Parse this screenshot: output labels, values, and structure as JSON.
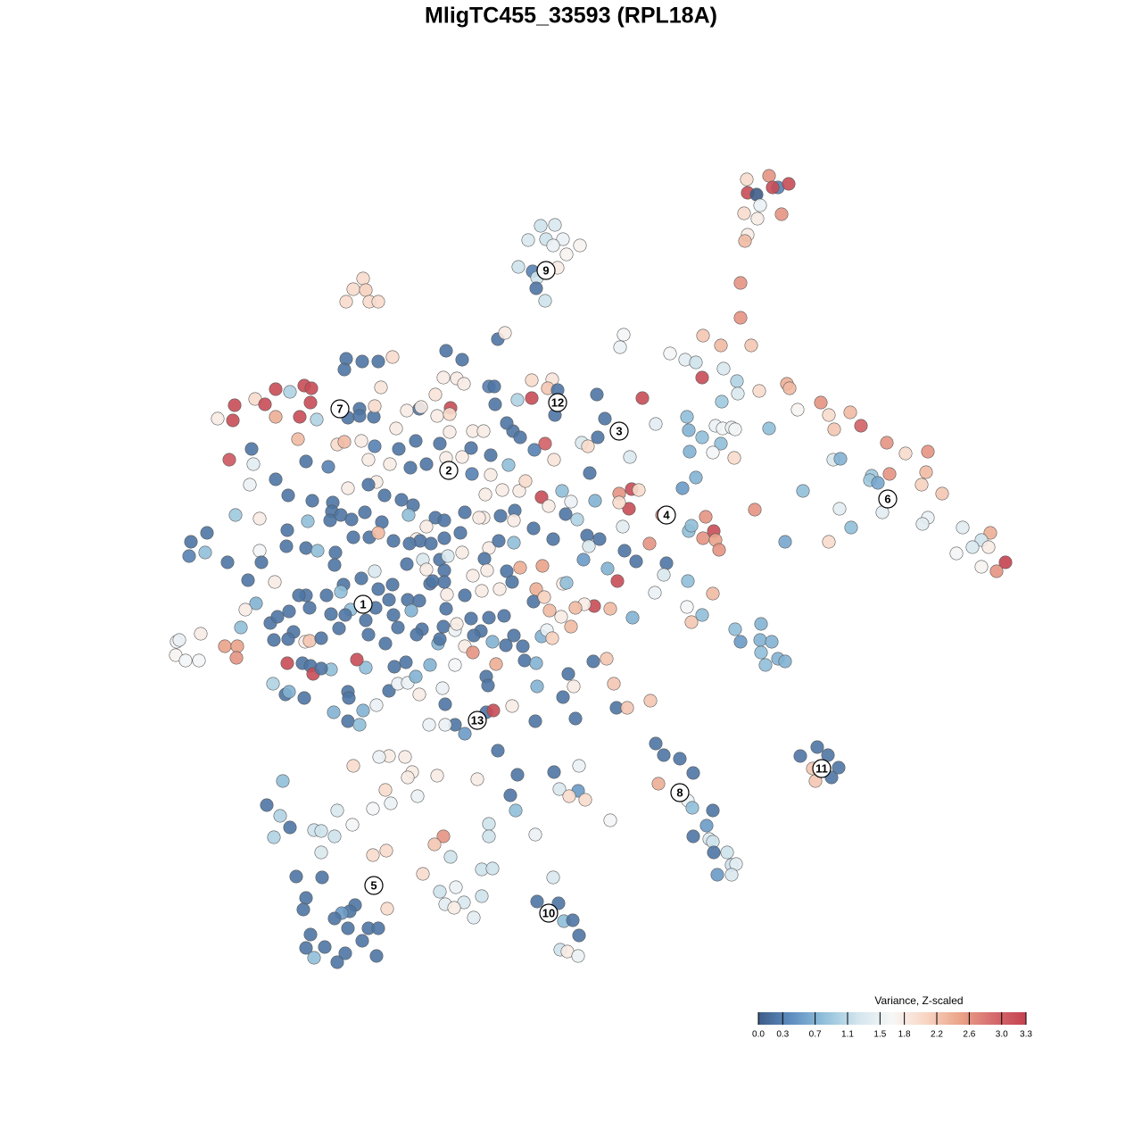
{
  "chart_data": {
    "type": "scatter",
    "title": "MligTC455_33593 (RPL18A)",
    "x": [
      837,
      862,
      872,
      884,
      866,
      838,
      848,
      852,
      834,
      849,
      876,
      838,
      835,
      830,
      830,
      808,
      842,
      788,
      751,
      768,
      780,
      787,
      811,
      826,
      827,
      851,
      882,
      885,
      894,
      920,
      929,
      953,
      935,
      965,
      770,
      772,
      802,
      810,
      820,
      824,
      787,
      808,
      773,
      799,
      823,
      862,
      809,
      735,
      780,
      765,
      994,
      1015,
      1040,
      1038,
      977,
      997,
      934,
      942,
      975,
      984,
      1033,
      1056,
      900,
      941,
      989,
      1040,
      1034,
      954,
      1079,
      1110,
      1100,
      1090,
      1108,
      1072,
      1100,
      1127,
      1117,
      929,
      880,
      846,
      606,
      622,
      592,
      612,
      631,
      620,
      650,
      635,
      581,
      597,
      625,
      602,
      601,
      611,
      407,
      396,
      410,
      388,
      414,
      424,
      558,
      566,
      699,
      695,
      388,
      406,
      424,
      440,
      386,
      500,
      518,
      497,
      512,
      427,
      488,
      548,
      554,
      580,
      596,
      619,
      614,
      625,
      669,
      720,
      596,
      555,
      622,
      678,
      670,
      661,
      706,
      652,
      659,
      621,
      599,
      611,
      575,
      568,
      583,
      520,
      244,
      263,
      261,
      286,
      297,
      309,
      325,
      341,
      349,
      348,
      336,
      309,
      355,
      334,
      257,
      282,
      284,
      280,
      309,
      343,
      368,
      390,
      403,
      403,
      419,
      420,
      378,
      386,
      405,
      413,
      420,
      444,
      456,
      470,
      472,
      490,
      505,
      504,
      504,
      530,
      542,
      447,
      466,
      493,
      437,
      460,
      478,
      500,
      518,
      528,
      550,
      570,
      529,
      550,
      544,
      563,
      582,
      589,
      607,
      630,
      640,
      667,
      634,
      615,
      577,
      598,
      576,
      561,
      542,
      521,
      488,
      463,
      450,
      431,
      422,
      413,
      390,
      373,
      350,
      323,
      264,
      291,
      345,
      372,
      370,
      382,
      394,
      409,
      428,
      458,
      478,
      498,
      516,
      537,
      548,
      559,
      576,
      620,
      647,
      658,
      660,
      672,
      698,
      700,
      713,
      728,
      742,
      747,
      694,
      708,
      716,
      705,
      694,
      772,
      775,
      791,
      800,
      788,
      802,
      806,
      232,
      214,
      212,
      230,
      255,
      291,
      293,
      278,
      308,
      321,
      322,
      343,
      356,
      376,
      375,
      396,
      414,
      424,
      441,
      467,
      471,
      459,
      483,
      498,
      518,
      543,
      546,
      568,
      583,
      608,
      631,
      635,
      654,
      681,
      692,
      666,
      684,
      655,
      645,
      640,
      629,
      616,
      601,
      598,
      610,
      574,
      560,
      540,
      521,
      528,
      501,
      482,
      456,
      440,
      436,
      424,
      405,
      385,
      382,
      366,
      343,
      335,
      347,
      371,
      393,
      421,
      420,
      441,
      457,
      470,
      485,
      493,
      502,
      474,
      478,
      498,
      498,
      530,
      548,
      539,
      552,
      576,
      567,
      586,
      607,
      613,
      619,
      565,
      531,
      521,
      500,
      497,
      473,
      467,
      461,
      491,
      493,
      510,
      512,
      287,
      275,
      303,
      311,
      324,
      329,
      270,
      307,
      323,
      342,
      347,
      360,
      380,
      387,
      410,
      413,
      432,
      446,
      410,
      400,
      198,
      201,
      225,
      252,
      266,
      265,
      197,
      208,
      223,
      322,
      339,
      348,
      351,
      371,
      360,
      306,
      320,
      324,
      341,
      390,
      391,
      374,
      390,
      403,
      407,
      422,
      436,
      446,
      455,
      457,
      466,
      442,
      482,
      510,
      530,
      545,
      547,
      556,
      588,
      601,
      637,
      643,
      602,
      631,
      645,
      600,
      574,
      545,
      553,
      496,
      470,
      499,
      510,
      521,
      499,
      481,
      665,
      680,
      688,
      691,
      703,
      729,
      558,
      436,
      425,
      396,
      454,
      462,
      490,
      535,
      457,
      432,
      438,
      418,
      468,
      317,
      299,
      314,
      325,
      307,
      352,
      360,
      375,
      378,
      395,
      360,
      497,
      487,
      548,
      548,
      600,
      505,
      474,
      540,
      552,
      511,
      493,
      499,
      520,
      540,
      509,
      531,
      434,
      433,
      418,
      332,
      361,
      343,
      340,
      398,
      392,
      383,
      375,
      390,
      413,
      424,
      406,
      348,
      343,
      352,
      364,
      387,
      378,
      422,
      572,
      578,
      580,
      621,
      627,
      649,
      648,
      656,
      638,
      684,
      620,
      602,
      626,
      632,
      642,
      649,
      628,
      636,
      648,
      735,
      744,
      762,
      777,
      738,
      771,
      776,
      799,
      792,
      795,
      799,
      777,
      800,
      820,
      825,
      815,
      804,
      820,
      916,
      928,
      897,
      911,
      914,
      940,
      932,
      824,
      830,
      853,
      852,
      865,
      853,
      858,
      872,
      880,
      771,
      734,
      744,
      799,
      770,
      787,
      775,
      709
    ],
    "y": [
      201,
      197,
      210,
      206,
      210,
      216,
      218,
      230,
      239,
      245,
      240,
      263,
      270,
      317,
      356,
      387,
      387,
      376,
      396,
      403,
      406,
      423,
      413,
      427,
      441,
      438,
      430,
      435,
      459,
      451,
      465,
      462,
      481,
      477,
      467,
      482,
      477,
      480,
      479,
      481,
      490,
      497,
      506,
      507,
      513,
      480,
      450,
      475,
      535,
      547,
      496,
      508,
      506,
      529,
      533,
      531,
      515,
      514,
      538,
      541,
      543,
      553,
      550,
      570,
      574,
      580,
      587,
      591,
      591,
      597,
      605,
      613,
      613,
      620,
      635,
      630,
      640,
      607,
      607,
      571,
      253,
      252,
      269,
      268,
      268,
      275,
      275,
      285,
      299,
      304,
      300,
      311,
      323,
      337,
      312,
      324,
      325,
      338,
      338,
      338,
      380,
      373,
      375,
      389,
      402,
      405,
      405,
      400,
      414,
      393,
      403,
      423,
      424,
      434,
      442,
      433,
      433,
      448,
      426,
      425,
      435,
      437,
      442,
      446,
      446,
      453,
      465,
      469,
      490,
      530,
      512,
      496,
      500,
      515,
      504,
      497,
      483,
      474,
      490,
      430,
      469,
      454,
      471,
      447,
      453,
      436,
      439,
      432,
      435,
      451,
      467,
      467,
      470,
      492,
      515,
      503,
      520,
      543,
      537,
      517,
      523,
      468,
      458,
      466,
      467,
      455,
      498,
      495,
      494,
      515,
      500,
      480,
      460,
      458,
      456,
      466,
      457,
      464,
      484,
      483,
      483,
      503,
      494,
      497,
      520,
      524,
      520,
      513,
      512,
      502,
      510,
      521,
      531,
      532,
      554,
      549,
      550,
      539,
      557,
      550,
      562,
      561,
      576,
      567,
      572,
      592,
      583,
      578,
      580,
      574,
      580,
      566,
      560,
      555,
      540,
      543,
      547,
      563,
      561,
      555,
      577,
      581,
      584,
      573,
      583,
      577,
      582,
      574,
      585,
      577,
      590,
      583,
      597,
      580,
      614,
      606,
      608,
      604,
      582,
      600,
      612,
      604,
      590,
      617,
      629,
      609,
      577,
      631,
      553,
      548,
      549,
      570,
      563,
      595,
      589,
      579,
      595,
      603,
      605,
      616,
      597,
      607,
      623,
      619,
      630,
      617,
      630,
      650,
      652,
      612,
      594,
      614,
      617,
      619,
      633,
      602,
      602,
      597,
      606,
      604,
      606,
      609,
      609,
      603,
      619,
      626,
      639,
      640,
      636,
      634,
      654,
      653,
      627,
      637,
      651,
      679,
      682,
      677,
      681,
      702,
      691,
      684,
      660,
      674,
      669,
      652,
      660,
      662,
      667,
      693,
      666,
      654,
      632,
      655,
      672,
      660,
      648,
      655,
      663,
      667,
      667,
      667,
      681,
      688,
      683,
      681,
      640,
      689,
      672,
      673,
      651,
      627,
      623,
      627,
      638,
      639,
      652,
      645,
      692,
      707,
      719,
      712,
      723,
      724,
      713,
      706,
      715,
      690,
      712,
      724,
      682,
      702,
      705,
      711,
      684,
      721,
      716,
      706,
      699,
      676,
      683,
      698,
      691,
      685,
      708,
      703,
      717,
      716,
      719,
      718,
      715,
      704,
      689,
      695,
      711,
      721,
      703,
      748,
      739,
      719,
      717,
      710,
      724,
      724,
      737,
      734,
      740,
      740,
      743,
      743,
      746,
      755,
      750,
      749,
      766,
      778,
      775,
      782,
      775,
      782,
      798,
      808,
      812,
      796,
      790,
      774,
      766,
      742,
      765,
      758,
      747,
      745,
      745,
      731,
      758,
      768,
      744,
      740,
      743,
      755,
      769,
      769,
      781,
      805,
      808,
      791,
      798,
      796,
      771,
      778,
      789,
      812,
      822,
      812,
      812,
      741,
      738,
      766,
      793,
      793,
      785,
      841,
      847,
      848,
      858,
      848,
      865,
      869,
      873,
      871,
      885,
      900,
      906,
      892,
      875,
      902,
      914,
      927,
      938,
      930,
      931,
      937,
      908,
      924,
      955,
      937,
      946,
      923,
      937,
      935,
      960,
      979,
      974,
      973,
      994,
      999,
      1013,
      1011,
      1004,
      1017,
      1028,
      1018,
      953,
      958,
      982,
      983,
      1006,
      1019,
      1014,
      1021,
      1023,
      1029,
      1040,
      1040,
      1040,
      1054,
      1047,
      1062,
      1073,
      1061,
      1068,
      1078,
      1071,
      891,
      908,
      868,
      865,
      884,
      858,
      886,
      896,
      892,
      919,
      983,
      1010,
      1012,
      1032,
      1031,
      1048,
      1064,
      1066,
      1071,
      833,
      846,
      850,
      866,
      878,
      897,
      905,
      908,
      925,
      940,
      943,
      937,
      955,
      969,
      968,
      955,
      980,
      980,
      837,
      846,
      847,
      861,
      875,
      860,
      871,
      705,
      719,
      699,
      717,
      719,
      731,
      745,
      738,
      741,
      651,
      664,
      644,
      665,
      680,
      689,
      697,
      692
    ],
    "values": [
      2.0,
      2.6,
      0.3,
      3.2,
      3.2,
      3.2,
      0.0,
      1.5,
      2.0,
      1.8,
      2.6,
      1.8,
      2.3,
      2.6,
      2.6,
      2.3,
      2.2,
      2.2,
      1.6,
      1.4,
      1.2,
      3.2,
      1.3,
      1.0,
      1.3,
      2.0,
      2.4,
      2.3,
      1.7,
      2.6,
      2.0,
      2.3,
      2.2,
      3.0,
      0.8,
      0.7,
      1.5,
      1.6,
      1.5,
      1.6,
      0.8,
      0.8,
      0.7,
      1.6,
      2.0,
      0.8,
      0.9,
      1.4,
      0.7,
      0.5,
      2.6,
      2.0,
      2.6,
      2.3,
      0.9,
      2.6,
      1.3,
      0.7,
      0.9,
      0.6,
      2.1,
      2.2,
      0.8,
      1.4,
      1.4,
      1.5,
      1.4,
      0.8,
      1.4,
      2.4,
      1.2,
      1.3,
      1.8,
      1.6,
      1.7,
      3.3,
      2.6,
      2.0,
      0.6,
      2.6,
      1.2,
      1.3,
      1.3,
      1.2,
      1.5,
      1.5,
      1.7,
      1.7,
      1.2,
      0.3,
      1.8,
      1.2,
      0.2,
      1.2,
      2.0,
      2.0,
      2.1,
      2.0,
      2.0,
      2.0,
      0.2,
      1.8,
      1.6,
      1.5,
      0.2,
      0.2,
      0.2,
      2.0,
      0.2,
      0.2,
      0.2,
      1.8,
      1.8,
      1.9,
      1.9,
      0.3,
      0.2,
      1.0,
      2.0,
      1.9,
      2.2,
      0.2,
      0.2,
      3.2,
      3.2,
      0.2,
      0.2,
      0.2,
      0.2,
      0.2,
      1.3,
      1.3,
      2.0,
      1.9,
      0.3,
      3.0,
      0.2,
      0.2,
      0.2,
      1.8,
      1.8,
      3.2,
      3.2,
      2.0,
      3.2,
      3.2,
      1.0,
      3.2,
      3.2,
      3.2,
      3.2,
      2.4,
      1.0,
      2.3,
      3.1,
      0.2,
      1.4,
      1.5,
      0.2,
      0.2,
      0.3,
      0.2,
      0.2,
      0.2,
      0.2,
      2.0,
      2.0,
      2.3,
      1.8,
      1.8,
      0.3,
      1.8,
      1.8,
      0.2,
      1.8,
      1.8,
      3.2,
      2.0,
      1.8,
      1.8,
      1.8,
      0.2,
      0.2,
      0.2,
      1.8,
      0.2,
      0.2,
      1.8,
      1.8,
      0.2,
      0.2,
      0.8,
      0.3,
      1.8,
      1.8,
      1.8,
      1.8,
      2.0,
      3.2,
      0.8,
      1.5,
      0.7,
      0.2,
      1.8,
      0.2,
      0.2,
      1.8,
      0.2,
      1.8,
      0.2,
      0.2,
      0.2,
      0.2,
      0.2,
      1.8,
      0.2,
      1.8,
      0.2,
      0.2,
      0.2,
      0.9,
      1.8,
      0.8,
      0.2,
      0.2,
      0.2,
      0.2,
      0.2,
      0.2,
      0.8,
      1.8,
      0.2,
      0.2,
      1.8,
      1.8,
      0.2,
      0.8,
      0.2,
      1.0,
      0.2,
      1.3,
      0.2,
      1.4,
      0.2,
      0.2,
      2.6,
      2.6,
      0.2,
      2.6,
      3.2,
      2.0,
      3.2,
      2.0,
      0.8,
      0.8,
      2.6,
      3.2,
      2.6,
      2.5,
      2.6,
      0.2,
      0.2,
      0.3,
      0.8,
      0.2,
      1.6,
      0.2,
      0.2,
      1.8,
      0.2,
      0.2,
      0.2,
      0.8,
      0.2,
      0.2,
      0.2,
      0.2,
      2.3,
      0.2,
      1.8,
      0.2,
      0.2,
      0.2,
      0.2,
      1.8,
      0.2,
      1.8,
      0.2,
      2.4,
      2.5,
      1.8,
      0.8,
      0.5,
      0.7,
      3.2,
      3.2,
      2.3,
      1.8,
      2.3,
      2.3,
      1.8,
      2.3,
      2.4,
      0.2,
      2.1,
      0.2,
      1.8,
      1.8,
      0.2,
      0.2,
      1.8,
      0.2,
      0.2,
      0.2,
      0.2,
      0.2,
      0.2,
      0.2,
      0.8,
      0.2,
      0.2,
      0.2,
      0.2,
      0.2,
      0.8,
      0.2,
      1.3,
      0.2,
      0.2,
      0.2,
      0.2,
      0.2,
      1.3,
      1.3,
      1.8,
      0.2,
      0.2,
      1.8,
      0.2,
      0.2,
      0.7,
      0.2,
      0.2,
      0.2,
      0.7,
      1.5,
      2.1,
      0.2,
      0.2,
      1.8,
      0.2,
      0.2,
      0.2,
      0.2,
      0.7,
      0.7,
      0.2,
      1.5,
      1.8,
      0.7,
      1.8,
      0.2,
      0.2,
      0.2,
      0.2,
      0.8,
      0.2,
      0.2,
      1.8,
      2.2,
      0.2,
      0.2,
      0.2,
      0.2,
      0.2,
      0.2,
      0.2,
      0.8,
      3.2,
      1.6,
      1.5,
      1.8,
      2.5,
      2.5,
      2.6,
      1.7,
      1.6,
      1.6,
      3.2,
      0.2,
      0.2,
      3.2,
      0.8,
      0.2,
      1.0,
      0.2,
      0.7,
      0.2,
      0.2,
      0.2,
      0.7,
      0.2,
      0.8,
      0.7,
      1.5,
      0.2,
      1.5,
      0.2,
      1.5,
      0.7,
      0.2,
      0.7,
      1.6,
      2.6,
      0.2,
      0.2,
      2.4,
      0.2,
      0.7,
      0.2,
      1.8,
      0.7,
      0.2,
      0.2,
      0.2,
      1.8,
      0.2,
      3.2,
      1.5,
      1.8,
      0.2,
      0.2,
      0.5,
      1.5,
      1.5,
      0.2,
      2.2,
      2.2,
      0.2,
      2.2,
      2.2,
      0.2,
      1.8,
      1.5,
      2.0,
      1.8,
      1.8,
      1.8,
      1.8,
      1.8,
      2.0,
      1.5,
      1.6,
      1.5,
      0.8,
      0.2,
      1.0,
      0.2,
      1.0,
      1.2,
      1.2,
      1.2,
      1.3,
      1.6,
      1.3,
      2.6,
      2.2,
      1.2,
      1.2,
      1.5,
      1.2,
      2.0,
      1.2,
      1.2,
      1.5,
      1.2,
      1.4,
      1.3,
      1.2,
      1.8,
      1.4,
      2.0,
      2.0,
      2.0,
      0.2,
      0.2,
      0.2,
      0.2,
      0.2,
      0.2,
      0.5,
      0.2,
      0.2,
      0.2,
      0.2,
      0.2,
      0.2,
      0.2,
      0.8,
      0.2,
      0.2,
      0.2,
      0.2,
      0.2,
      0.8,
      0.2,
      0.2,
      1.3,
      1.5,
      0.5,
      2.0,
      2.0,
      1.6,
      1.3,
      0.2,
      0.2,
      0.8,
      0.2,
      0.2,
      1.2,
      1.8,
      1.5,
      0.2,
      0.2,
      0.2,
      0.2,
      2.4,
      1.5,
      0.8,
      0.2,
      0.5,
      1.3,
      1.2,
      0.2,
      0.2,
      1.2,
      1.4,
      1.2,
      0.5,
      1.3,
      0.2,
      0.2,
      0.2,
      2.2,
      2.2,
      0.2,
      0.2,
      0.8,
      0.5,
      0.7,
      0.7,
      0.7,
      0.8,
      0.8,
      0.7,
      0.7,
      0.8,
      1.5,
      1.3,
      2.3,
      1.6,
      0.8,
      2.2,
      0.7
    ],
    "cluster_labels": {
      "labels": [
        "1",
        "2",
        "3",
        "4",
        "5",
        "6",
        "7",
        "8",
        "9",
        "10",
        "11",
        "12",
        "13"
      ],
      "x": [
        407,
        503,
        694,
        747,
        419,
        995,
        381,
        762,
        612,
        615,
        921,
        625,
        535
      ],
      "y": [
        677,
        527,
        483,
        577,
        992,
        559,
        458,
        888,
        303,
        1023,
        861,
        451,
        807
      ]
    },
    "colorbar": {
      "title": "Variance, Z-scaled",
      "clim": [
        0,
        3.3
      ],
      "ticks": [
        {
          "value": 0,
          "label": "0.0"
        },
        0.3,
        0.7,
        1.1,
        1.5,
        1.8,
        2.2,
        2.6,
        {
          "value": 3,
          "label": "3.0"
        },
        3.3
      ],
      "colors": [
        "#3e5d88",
        "#5f8fc2",
        "#93c2db",
        "#d4e6ee",
        "#f7f7f7",
        "#f8d6c4",
        "#eba58a",
        "#d66d6f",
        "#c4424f"
      ]
    }
  }
}
